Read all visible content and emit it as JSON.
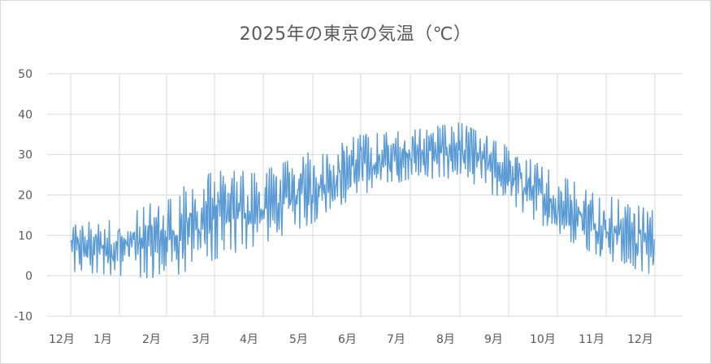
{
  "chart_data": {
    "type": "line",
    "title": "2025年の東京の気温（℃）",
    "xlabel": "",
    "ylabel": "",
    "ylim": [
      -10,
      50
    ],
    "yticks": [
      -10,
      0,
      10,
      20,
      30,
      40,
      50
    ],
    "x_ticks": [
      "12月",
      "1月",
      "2月",
      "3月",
      "4月",
      "5月",
      "6月",
      "7月",
      "8月",
      "9月",
      "10月",
      "11月",
      "12月"
    ],
    "grid": true,
    "legend": "none",
    "line_color": "#5b9bd5",
    "series": [
      {
        "monthly_range": [
          {
            "month": "12月",
            "low": 1,
            "high": 13
          },
          {
            "month": "1月",
            "low": 0,
            "high": 14
          },
          {
            "month": "2月",
            "low": -1,
            "high": 20
          },
          {
            "month": "3月",
            "low": 4,
            "high": 26
          },
          {
            "month": "4月",
            "low": 8,
            "high": 26
          },
          {
            "month": "5月",
            "low": 13,
            "high": 31
          },
          {
            "month": "6月",
            "low": 20,
            "high": 35
          },
          {
            "month": "7月",
            "low": 24,
            "high": 36
          },
          {
            "month": "8月",
            "low": 24,
            "high": 38
          },
          {
            "month": "9月",
            "low": 18,
            "high": 32
          },
          {
            "month": "10月",
            "low": 10,
            "high": 25
          },
          {
            "month": "11月",
            "low": 4,
            "high": 20
          },
          {
            "month": "12月",
            "low": 0,
            "high": 16
          }
        ]
      }
    ]
  }
}
